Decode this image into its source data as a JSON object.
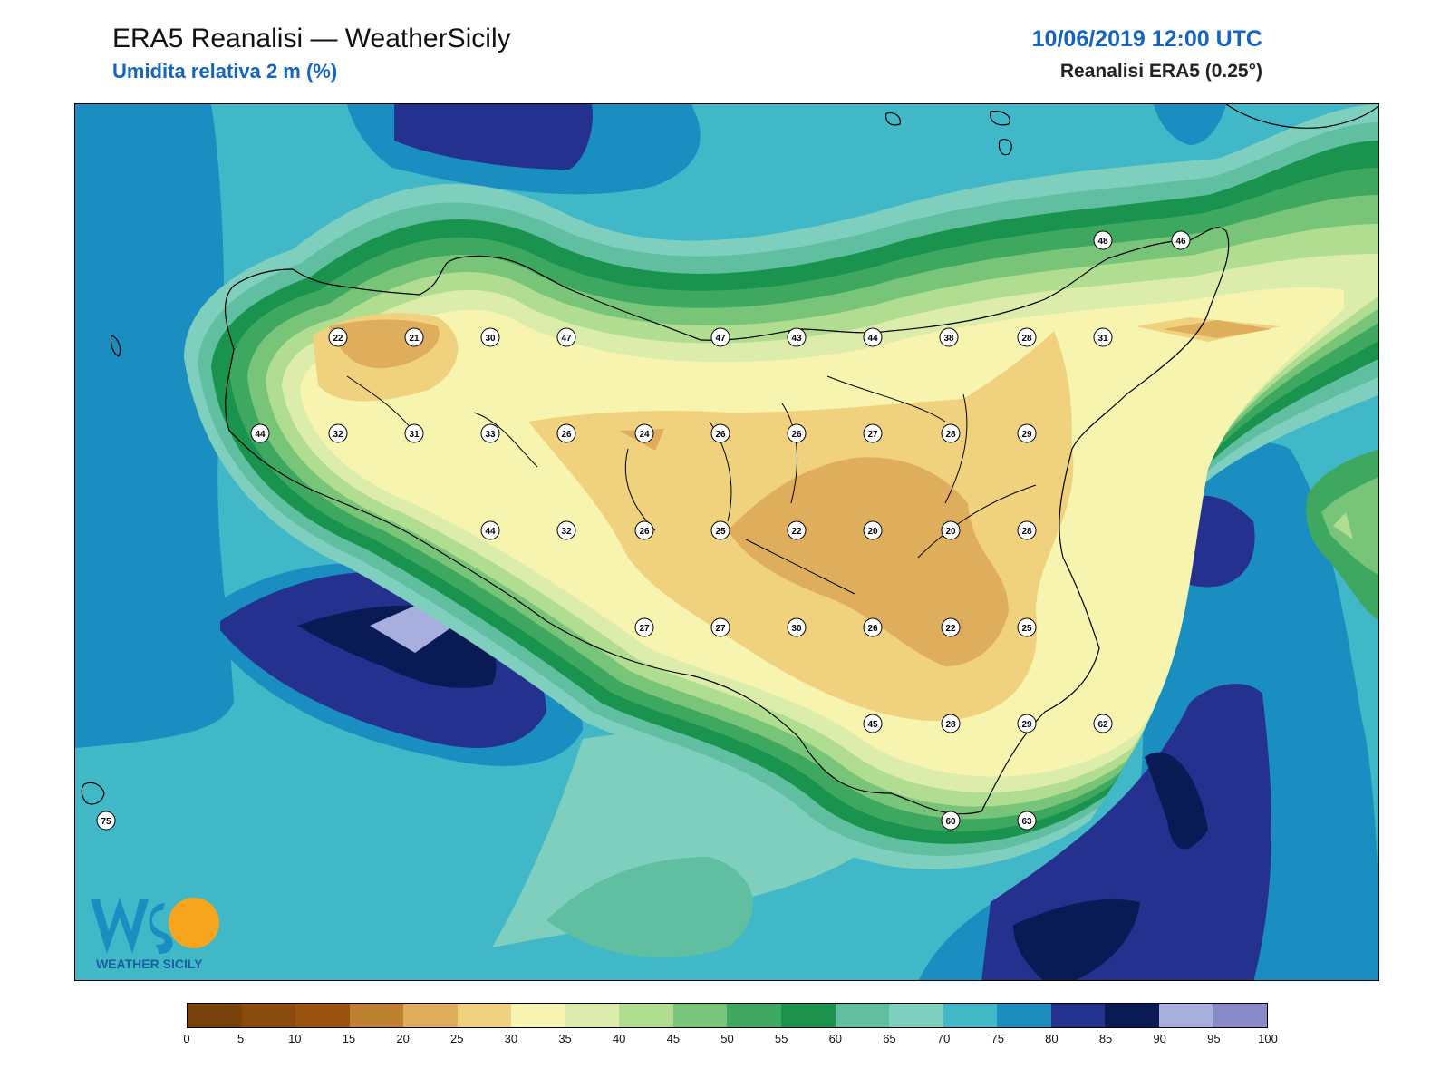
{
  "header": {
    "title": "ERA5 Reanalisi — WeatherSicily",
    "subtitle": "Umidita relativa 2 m (%)",
    "datetime": "10/06/2019 12:00 UTC",
    "model": "Reanalisi ERA5 (0.25°)"
  },
  "logo": {
    "text": "WEATHER SICILY",
    "mark": "WS"
  },
  "colorbar": {
    "ticks": [
      "0",
      "5",
      "10",
      "15",
      "20",
      "25",
      "30",
      "35",
      "40",
      "45",
      "50",
      "55",
      "60",
      "65",
      "70",
      "75",
      "80",
      "85",
      "90",
      "95",
      "100"
    ],
    "colors": [
      "#7a4208",
      "#8c4a0c",
      "#9a540f",
      "#bf8030",
      "#dfae5c",
      "#f0d27e",
      "#f7f4b0",
      "#dcedab",
      "#b0dd90",
      "#78c57a",
      "#3fa860",
      "#19934e",
      "#5fbfa0",
      "#7fcfbe",
      "#40b8c8",
      "#1a8ec0",
      "#24318f",
      "#0a1a55",
      "#a8aedd",
      "#8a8ac8"
    ]
  },
  "stations": [
    {
      "v": "22"
    },
    {
      "v": "21"
    },
    {
      "v": "30"
    },
    {
      "v": "47"
    },
    {
      "v": "47"
    },
    {
      "v": "43"
    },
    {
      "v": "44"
    },
    {
      "v": "38"
    },
    {
      "v": "28"
    },
    {
      "v": "31"
    },
    {
      "v": "48"
    },
    {
      "v": "46"
    },
    {
      "v": "44"
    },
    {
      "v": "32"
    },
    {
      "v": "31"
    },
    {
      "v": "33"
    },
    {
      "v": "26"
    },
    {
      "v": "24"
    },
    {
      "v": "26"
    },
    {
      "v": "26"
    },
    {
      "v": "27"
    },
    {
      "v": "28"
    },
    {
      "v": "29"
    },
    {
      "v": "44"
    },
    {
      "v": "32"
    },
    {
      "v": "26"
    },
    {
      "v": "25"
    },
    {
      "v": "22"
    },
    {
      "v": "20"
    },
    {
      "v": "20"
    },
    {
      "v": "28"
    },
    {
      "v": "27"
    },
    {
      "v": "27"
    },
    {
      "v": "30"
    },
    {
      "v": "26"
    },
    {
      "v": "22"
    },
    {
      "v": "25"
    },
    {
      "v": "45"
    },
    {
      "v": "28"
    },
    {
      "v": "29"
    },
    {
      "v": "62"
    },
    {
      "v": "75"
    },
    {
      "v": "60"
    },
    {
      "v": "63"
    }
  ]
}
